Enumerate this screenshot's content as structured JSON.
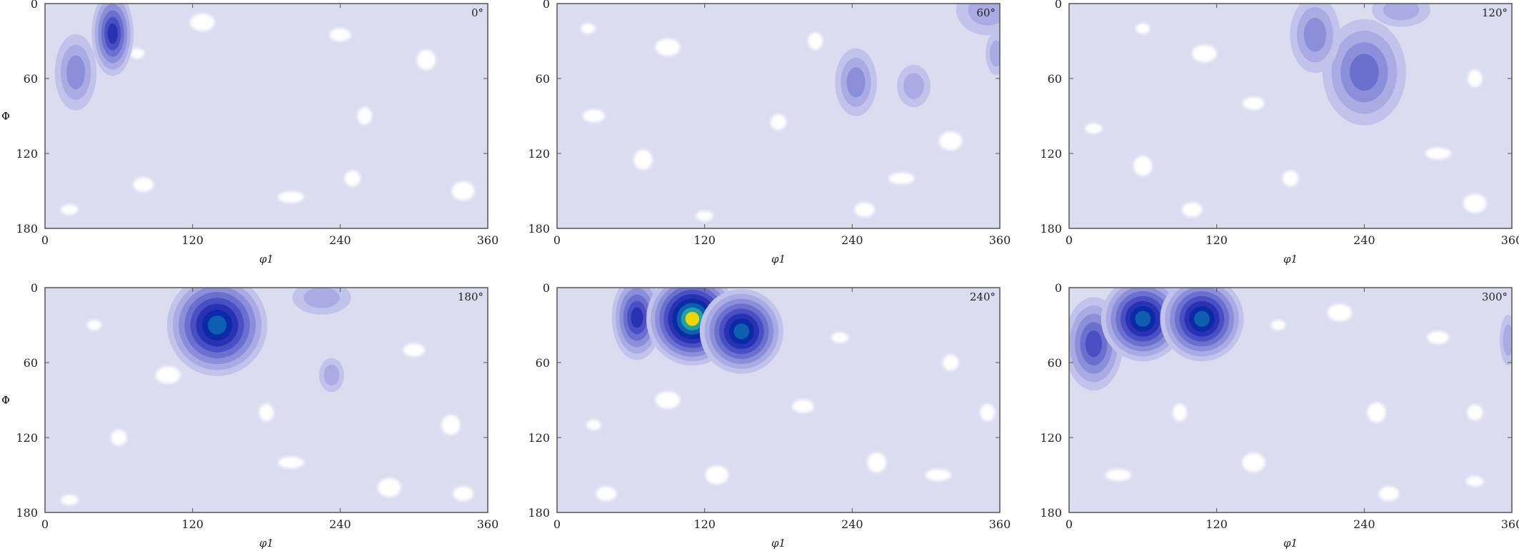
{
  "figure": {
    "background": "#ffffff",
    "plot_background": "#dcdcf1",
    "hole_color": "#ffffff"
  },
  "chart_data": [
    {
      "type": "heatmap",
      "corner_label": "0°",
      "xlabel": "φ1",
      "ylabel": "Φ",
      "xlim": [
        0,
        360
      ],
      "ylim": [
        180,
        0
      ],
      "xticks": [
        0,
        120,
        240,
        360
      ],
      "yticks": [
        0,
        60,
        120,
        180
      ],
      "peaks": [
        {
          "phi1": 55,
          "Phi": 24,
          "rx": 10,
          "ry": 20,
          "level": 6
        },
        {
          "phi1": 25,
          "Phi": 55,
          "rx": 10,
          "ry": 18,
          "level": 3
        }
      ],
      "holes": [
        {
          "phi1": 75,
          "Phi": 40
        },
        {
          "phi1": 128,
          "Phi": 15
        },
        {
          "phi1": 240,
          "Phi": 25
        },
        {
          "phi1": 310,
          "Phi": 45
        },
        {
          "phi1": 250,
          "Phi": 140
        },
        {
          "phi1": 200,
          "Phi": 155
        },
        {
          "phi1": 340,
          "Phi": 150
        },
        {
          "phi1": 80,
          "Phi": 145
        },
        {
          "phi1": 20,
          "Phi": 165
        },
        {
          "phi1": 260,
          "Phi": 90
        }
      ]
    },
    {
      "type": "heatmap",
      "corner_label": "60°",
      "xlabel": "φ1",
      "ylabel": "Φ",
      "xlim": [
        0,
        360
      ],
      "ylim": [
        180,
        0
      ],
      "xticks": [
        0,
        120,
        240,
        360
      ],
      "yticks": [
        0,
        60,
        120,
        180
      ],
      "peaks": [
        {
          "phi1": 243,
          "Phi": 63,
          "rx": 10,
          "ry": 16,
          "level": 3
        },
        {
          "phi1": 290,
          "Phi": 66,
          "rx": 8,
          "ry": 10,
          "level": 2
        },
        {
          "phi1": 350,
          "Phi": 5,
          "rx": 15,
          "ry": 12,
          "level": 2
        },
        {
          "phi1": 357,
          "Phi": 40,
          "rx": 5,
          "ry": 10,
          "level": 2
        }
      ],
      "holes": [
        {
          "phi1": 25,
          "Phi": 20
        },
        {
          "phi1": 90,
          "Phi": 35
        },
        {
          "phi1": 30,
          "Phi": 90
        },
        {
          "phi1": 70,
          "Phi": 125
        },
        {
          "phi1": 180,
          "Phi": 95
        },
        {
          "phi1": 280,
          "Phi": 140
        },
        {
          "phi1": 320,
          "Phi": 110
        },
        {
          "phi1": 250,
          "Phi": 165
        },
        {
          "phi1": 120,
          "Phi": 170
        },
        {
          "phi1": 210,
          "Phi": 30
        }
      ]
    },
    {
      "type": "heatmap",
      "corner_label": "120°",
      "xlabel": "φ1",
      "ylabel": "Φ",
      "xlim": [
        0,
        360
      ],
      "ylim": [
        180,
        0
      ],
      "xticks": [
        0,
        120,
        240,
        360
      ],
      "yticks": [
        0,
        60,
        120,
        180
      ],
      "peaks": [
        {
          "phi1": 240,
          "Phi": 55,
          "rx": 20,
          "ry": 25,
          "level": 4
        },
        {
          "phi1": 200,
          "Phi": 25,
          "rx": 12,
          "ry": 18,
          "level": 3
        },
        {
          "phi1": 270,
          "Phi": 5,
          "rx": 14,
          "ry": 8,
          "level": 2
        }
      ],
      "holes": [
        {
          "phi1": 60,
          "Phi": 20
        },
        {
          "phi1": 110,
          "Phi": 40
        },
        {
          "phi1": 150,
          "Phi": 80
        },
        {
          "phi1": 60,
          "Phi": 130
        },
        {
          "phi1": 180,
          "Phi": 140
        },
        {
          "phi1": 300,
          "Phi": 120
        },
        {
          "phi1": 330,
          "Phi": 160
        },
        {
          "phi1": 100,
          "Phi": 165
        },
        {
          "phi1": 20,
          "Phi": 100
        },
        {
          "phi1": 330,
          "Phi": 60
        }
      ]
    },
    {
      "type": "heatmap",
      "corner_label": "180°",
      "xlabel": "φ1",
      "ylabel": "Φ",
      "xlim": [
        0,
        360
      ],
      "ylim": [
        180,
        0
      ],
      "xticks": [
        0,
        120,
        240,
        360
      ],
      "yticks": [
        0,
        60,
        120,
        180
      ],
      "peaks": [
        {
          "phi1": 140,
          "Phi": 30,
          "rx": 24,
          "ry": 24,
          "level": 8
        },
        {
          "phi1": 233,
          "Phi": 70,
          "rx": 6,
          "ry": 8,
          "level": 2
        },
        {
          "phi1": 225,
          "Phi": 8,
          "rx": 14,
          "ry": 8,
          "level": 2
        }
      ],
      "holes": [
        {
          "phi1": 40,
          "Phi": 30
        },
        {
          "phi1": 100,
          "Phi": 70
        },
        {
          "phi1": 300,
          "Phi": 50
        },
        {
          "phi1": 330,
          "Phi": 110
        },
        {
          "phi1": 60,
          "Phi": 120
        },
        {
          "phi1": 200,
          "Phi": 140
        },
        {
          "phi1": 280,
          "Phi": 160
        },
        {
          "phi1": 340,
          "Phi": 165
        },
        {
          "phi1": 20,
          "Phi": 170
        },
        {
          "phi1": 180,
          "Phi": 100
        }
      ]
    },
    {
      "type": "heatmap",
      "corner_label": "240°",
      "xlabel": "φ1",
      "ylabel": "Φ",
      "xlim": [
        0,
        360
      ],
      "ylim": [
        180,
        0
      ],
      "xticks": [
        0,
        120,
        240,
        360
      ],
      "yticks": [
        0,
        60,
        120,
        180
      ],
      "peaks": [
        {
          "phi1": 65,
          "Phi": 24,
          "rx": 12,
          "ry": 20,
          "level": 6
        },
        {
          "phi1": 110,
          "Phi": 25,
          "rx": 22,
          "ry": 22,
          "level": 10
        },
        {
          "phi1": 150,
          "Phi": 35,
          "rx": 20,
          "ry": 20,
          "level": 8
        }
      ],
      "holes": [
        {
          "phi1": 30,
          "Phi": 110
        },
        {
          "phi1": 90,
          "Phi": 90
        },
        {
          "phi1": 200,
          "Phi": 95
        },
        {
          "phi1": 260,
          "Phi": 140
        },
        {
          "phi1": 320,
          "Phi": 60
        },
        {
          "phi1": 310,
          "Phi": 150
        },
        {
          "phi1": 130,
          "Phi": 150
        },
        {
          "phi1": 40,
          "Phi": 165
        },
        {
          "phi1": 230,
          "Phi": 40
        },
        {
          "phi1": 350,
          "Phi": 100
        }
      ]
    },
    {
      "type": "heatmap",
      "corner_label": "300°",
      "xlabel": "φ1",
      "ylabel": "Φ",
      "xlim": [
        0,
        360
      ],
      "ylim": [
        180,
        0
      ],
      "xticks": [
        0,
        120,
        240,
        360
      ],
      "yticks": [
        0,
        60,
        120,
        180
      ],
      "peaks": [
        {
          "phi1": 20,
          "Phi": 45,
          "rx": 14,
          "ry": 22,
          "level": 5
        },
        {
          "phi1": 60,
          "Phi": 25,
          "rx": 20,
          "ry": 20,
          "level": 8
        },
        {
          "phi1": 108,
          "Phi": 25,
          "rx": 20,
          "ry": 20,
          "level": 8
        },
        {
          "phi1": 357,
          "Phi": 42,
          "rx": 4,
          "ry": 12,
          "level": 2
        }
      ],
      "holes": [
        {
          "phi1": 170,
          "Phi": 30
        },
        {
          "phi1": 220,
          "Phi": 20
        },
        {
          "phi1": 300,
          "Phi": 40
        },
        {
          "phi1": 250,
          "Phi": 100
        },
        {
          "phi1": 330,
          "Phi": 100
        },
        {
          "phi1": 40,
          "Phi": 150
        },
        {
          "phi1": 150,
          "Phi": 140
        },
        {
          "phi1": 260,
          "Phi": 165
        },
        {
          "phi1": 330,
          "Phi": 155
        },
        {
          "phi1": 90,
          "Phi": 100
        }
      ]
    }
  ]
}
